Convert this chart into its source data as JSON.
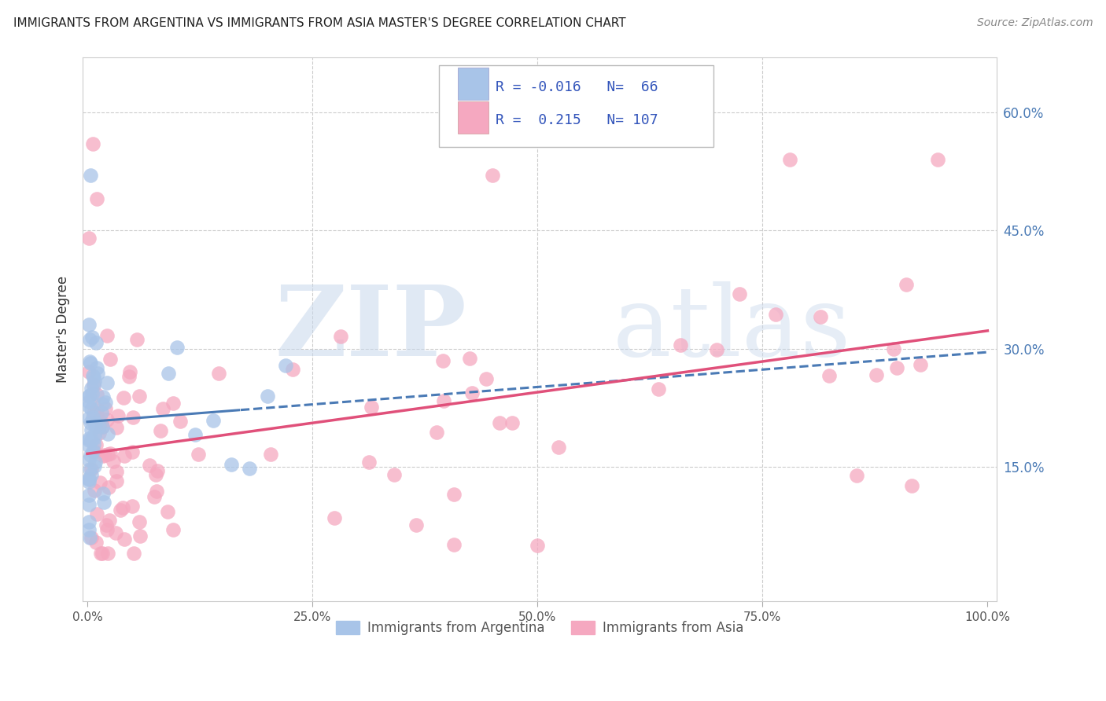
{
  "title": "IMMIGRANTS FROM ARGENTINA VS IMMIGRANTS FROM ASIA MASTER'S DEGREE CORRELATION CHART",
  "source": "Source: ZipAtlas.com",
  "ylabel": "Master's Degree",
  "legend_label1": "Immigrants from Argentina",
  "legend_label2": "Immigrants from Asia",
  "R1": -0.016,
  "N1": 66,
  "R2": 0.215,
  "N2": 107,
  "color_argentina": "#a8c4e8",
  "color_asia": "#f5a8c0",
  "line_color_argentina": "#4a7ab5",
  "line_color_asia": "#e0507a",
  "ytick_vals": [
    0.15,
    0.3,
    0.45,
    0.6
  ],
  "ytick_labels": [
    "15.0%",
    "30.0%",
    "45.0%",
    "60.0%"
  ],
  "xtick_vals": [
    0.0,
    0.25,
    0.5,
    0.75,
    1.0
  ],
  "xtick_labels": [
    "0.0%",
    "25.0%",
    "50.0%",
    "75.0%",
    "100.0%"
  ],
  "background_color": "#ffffff",
  "watermark_zip": "ZIP",
  "watermark_atlas": "atlas",
  "grid_color": "#cccccc",
  "xlim": [
    -0.005,
    1.01
  ],
  "ylim": [
    -0.02,
    0.67
  ]
}
